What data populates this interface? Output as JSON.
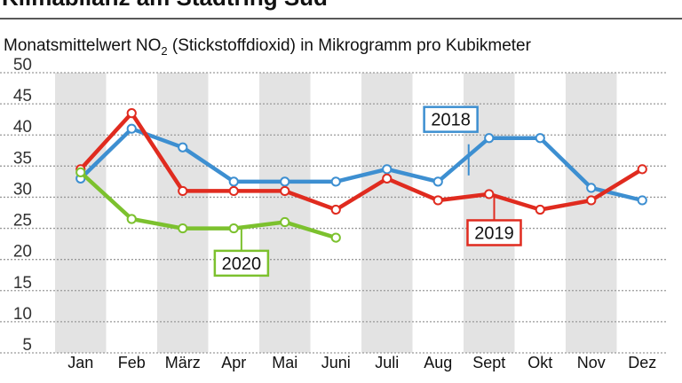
{
  "chart_data": {
    "type": "line",
    "title": "Klimabilanz am Stadtring Süd",
    "subtitle": "Monatsmittelwert NO₂ (Stickstoffdioxid) in Mikrogramm pro Kubikmeter",
    "subtitle_parts": {
      "before": "Monatsmittelwert NO",
      "sub": "2",
      "after": " (Stickstoffdioxid) in Mikrogramm pro Kubikmeter"
    },
    "categories": [
      "Jan",
      "Feb",
      "März",
      "Apr",
      "Mai",
      "Juni",
      "Juli",
      "Aug",
      "Sept",
      "Okt",
      "Nov",
      "Dez"
    ],
    "ylim": [
      5,
      50
    ],
    "yticks": [
      5,
      10,
      15,
      20,
      25,
      30,
      35,
      40,
      45,
      50
    ],
    "grid": true,
    "series": [
      {
        "name": "2018",
        "color": "#3d8fd1",
        "values": [
          33,
          41,
          38,
          32.5,
          32.5,
          32.5,
          34.5,
          32.5,
          39.5,
          39.5,
          31.5,
          29.5
        ]
      },
      {
        "name": "2019",
        "color": "#e02b1f",
        "values": [
          34.5,
          43.5,
          31,
          31,
          31,
          28,
          33,
          29.5,
          30.5,
          28,
          29.5,
          34.5
        ]
      },
      {
        "name": "2020",
        "color": "#7cc12e",
        "values": [
          34,
          26.5,
          25,
          25,
          26,
          23.5,
          null,
          null,
          null,
          null,
          null,
          null
        ]
      }
    ]
  }
}
